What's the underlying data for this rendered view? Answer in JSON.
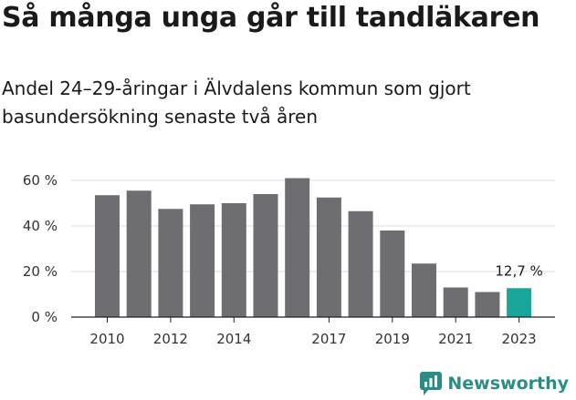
{
  "header": {
    "title": "Så många unga går till tandläkaren",
    "subtitle": "Andel 24–29-åringar i Älvdalens kommun som gjort basundersökning senaste två åren"
  },
  "brand": {
    "name": "Newsworthy",
    "color": "#2a8d86"
  },
  "colors": {
    "bar": "#6e6d72",
    "highlight": "#1aa59a",
    "grid": "#dcdcdc",
    "axis": "#222222"
  },
  "chart_data": {
    "type": "bar",
    "x": [
      2010,
      2011,
      2012,
      2013,
      2014,
      2015,
      2016,
      2017,
      2018,
      2019,
      2020,
      2021,
      2022,
      2023
    ],
    "values": [
      53.5,
      55.5,
      47.5,
      49.5,
      50,
      54,
      61,
      52.5,
      46.5,
      38,
      23.5,
      13,
      11,
      12.7
    ],
    "x_tick_labels": [
      "2010",
      "2012",
      "2014",
      "2017",
      "2019",
      "2021",
      "2023"
    ],
    "y_ticks": [
      0,
      20,
      40,
      60
    ],
    "y_tick_labels": [
      "0 %",
      "20 %",
      "40 %",
      "60 %"
    ],
    "ylim": [
      0,
      60
    ],
    "grid": true,
    "highlight_index": 13,
    "annotation": {
      "index": 13,
      "text": "12,7 %"
    },
    "title": "Så många unga går till tandläkaren",
    "xlabel": "",
    "ylabel": ""
  }
}
